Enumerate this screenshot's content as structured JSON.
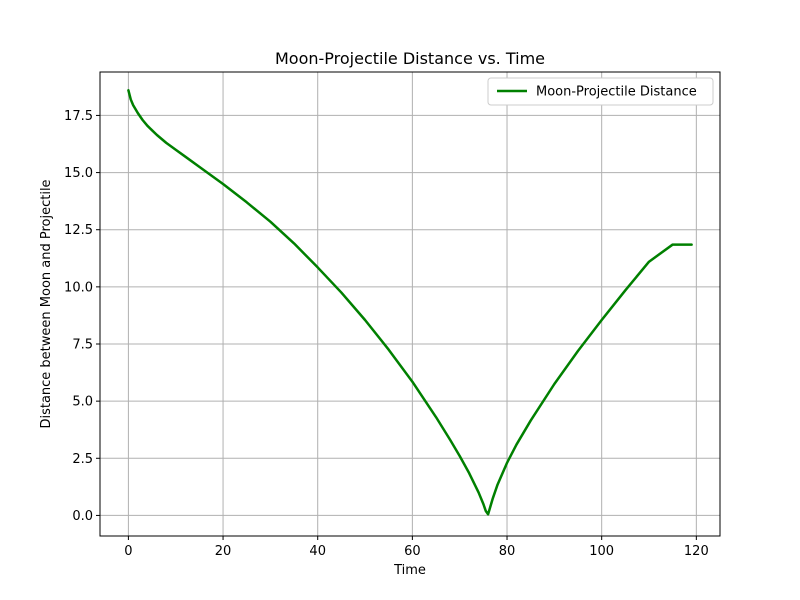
{
  "chart_data": {
    "type": "line",
    "title": "Moon-Projectile Distance vs. Time",
    "xlabel": "Time",
    "ylabel": "Distance between Moon and Projectile",
    "xlim": [
      -6,
      125
    ],
    "ylim": [
      -0.9,
      19.4
    ],
    "xticks": [
      0,
      20,
      40,
      60,
      80,
      100,
      120
    ],
    "yticks": [
      0.0,
      2.5,
      5.0,
      7.5,
      10.0,
      12.5,
      15.0,
      17.5
    ],
    "xtick_labels": [
      "0",
      "20",
      "40",
      "60",
      "80",
      "100",
      "120"
    ],
    "ytick_labels": [
      "0.0",
      "2.5",
      "5.0",
      "7.5",
      "10.0",
      "12.5",
      "15.0",
      "17.5"
    ],
    "grid": true,
    "legend_position": "top-right",
    "series": [
      {
        "name": "Moon-Projectile Distance",
        "color": "#008000",
        "x": [
          0,
          0.5,
          1,
          2,
          3,
          4,
          5,
          6,
          8,
          10,
          12,
          15,
          20,
          25,
          30,
          35,
          40,
          45,
          50,
          55,
          60,
          65,
          68,
          70,
          72,
          74,
          75,
          75.5,
          76,
          76.5,
          77,
          78,
          80,
          82,
          85,
          90,
          95,
          100,
          105,
          110,
          115,
          119
        ],
        "y": [
          18.6,
          18.2,
          17.95,
          17.6,
          17.3,
          17.05,
          16.85,
          16.65,
          16.3,
          16.0,
          15.7,
          15.25,
          14.5,
          13.7,
          12.85,
          11.9,
          10.85,
          9.75,
          8.55,
          7.25,
          5.85,
          4.3,
          3.3,
          2.6,
          1.85,
          1.0,
          0.5,
          0.2,
          0.05,
          0.4,
          0.75,
          1.35,
          2.3,
          3.1,
          4.15,
          5.75,
          7.2,
          8.55,
          9.85,
          11.1,
          11.85,
          11.85
        ]
      }
    ]
  }
}
